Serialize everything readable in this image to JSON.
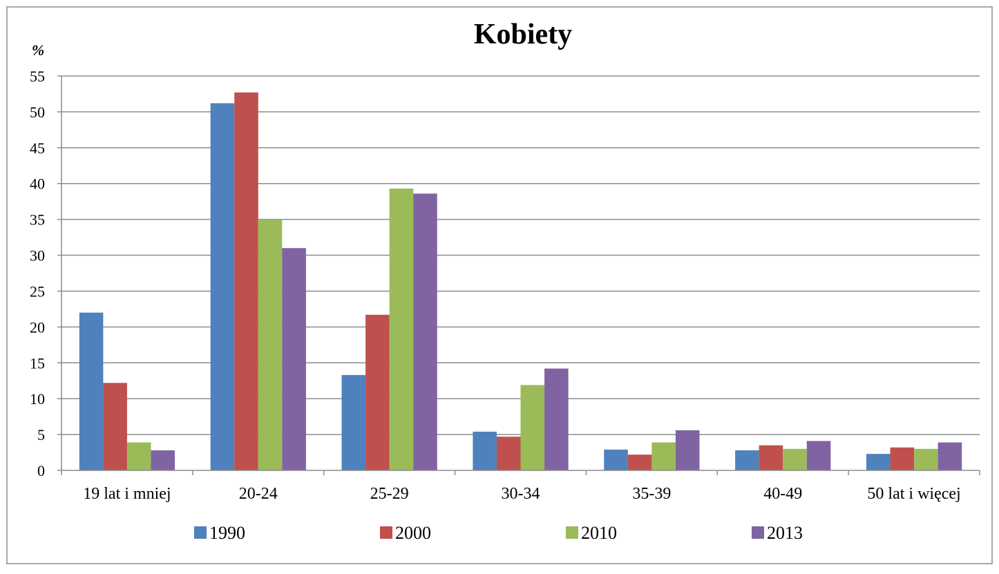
{
  "chart_data": {
    "type": "bar",
    "title": "Kobiety",
    "ylabel": "%",
    "xlabel": "",
    "categories": [
      "19 lat i mniej",
      "20-24",
      "25-29",
      "30-34",
      "35-39",
      "40-49",
      "50 lat i więcej"
    ],
    "series": [
      {
        "name": "1990",
        "color": "#4F81BD",
        "values": [
          22.0,
          51.2,
          13.3,
          5.4,
          2.9,
          2.8,
          2.3
        ]
      },
      {
        "name": "2000",
        "color": "#C0504D",
        "values": [
          12.2,
          52.7,
          21.7,
          4.7,
          2.2,
          3.5,
          3.2
        ]
      },
      {
        "name": "2010",
        "color": "#9BBB59",
        "values": [
          3.9,
          35.0,
          39.3,
          11.9,
          3.9,
          3.0,
          3.0
        ]
      },
      {
        "name": "2013",
        "color": "#8064A2",
        "values": [
          2.8,
          31.0,
          38.6,
          14.2,
          5.6,
          4.1,
          3.9
        ]
      }
    ],
    "ylim": [
      0,
      55
    ],
    "ytick_step": 5,
    "yticks": [
      "0",
      "5",
      "10",
      "15",
      "20",
      "25",
      "30",
      "35",
      "40",
      "45",
      "50",
      "55"
    ],
    "grid": true,
    "legend": "bottom"
  }
}
